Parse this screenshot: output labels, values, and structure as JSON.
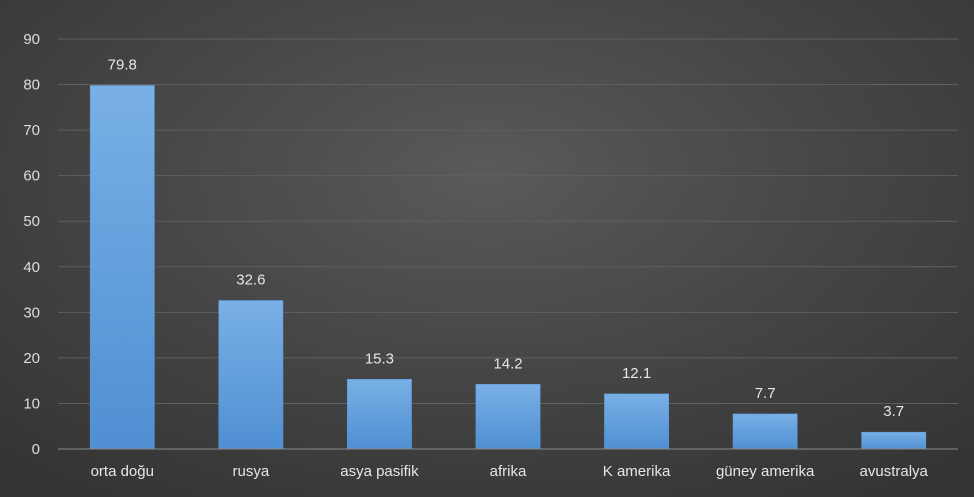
{
  "colors": {
    "bar_top": "#79b0e6",
    "bar_bottom": "#4f8fd2",
    "bar_edge": "#5d9be0"
  },
  "chart_data": {
    "type": "bar",
    "title": "",
    "xlabel": "",
    "ylabel": "",
    "categories": [
      "orta doğu",
      "rusya",
      "asya pasifik",
      "afrika",
      "K amerika",
      "güney amerika",
      "avustralya"
    ],
    "values": [
      79.8,
      32.6,
      15.3,
      14.2,
      12.1,
      7.7,
      3.7
    ],
    "data_labels": [
      "79.8",
      "32.6",
      "15.3",
      "14.2",
      "12.1",
      "7.7",
      "3.7"
    ],
    "ylim": [
      0,
      90
    ],
    "yticks": [
      0,
      10,
      20,
      30,
      40,
      50,
      60,
      70,
      80,
      90
    ],
    "grid": true,
    "legend": "none"
  }
}
